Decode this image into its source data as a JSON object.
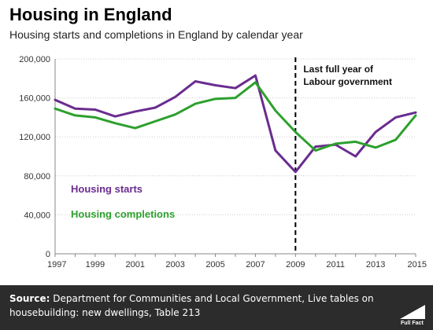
{
  "header": {
    "title": "Housing in England",
    "subtitle": "Housing starts and completions in England by calendar year"
  },
  "chart_data": {
    "type": "line",
    "title": "Housing in England",
    "subtitle": "Housing starts and completions in England by calendar year",
    "xlabel": "",
    "ylabel": "",
    "x": [
      1997,
      1998,
      1999,
      2000,
      2001,
      2002,
      2003,
      2004,
      2005,
      2006,
      2007,
      2008,
      2009,
      2010,
      2011,
      2012,
      2013,
      2014,
      2015
    ],
    "xticks": [
      "1997",
      "1999",
      "2001",
      "2003",
      "2005",
      "2007",
      "2009",
      "2011",
      "2013",
      "2015"
    ],
    "yticks": [
      "0",
      "40,000",
      "80,000",
      "120,000",
      "160,000",
      "200,000"
    ],
    "ylim": [
      0,
      200000
    ],
    "xlim": [
      1997,
      2015
    ],
    "grid": "horizontal",
    "legend_position": "inside-left",
    "series": [
      {
        "name": "Housing starts",
        "color": "#6a2c8f",
        "values": [
          158000,
          149000,
          148000,
          141000,
          146000,
          150000,
          161000,
          177000,
          173000,
          170000,
          183000,
          106000,
          84000,
          110000,
          112000,
          100000,
          125000,
          140000,
          145000
        ]
      },
      {
        "name": "Housing completions",
        "color": "#2ca02c",
        "values": [
          149000,
          142000,
          140000,
          134000,
          129000,
          136000,
          143000,
          154000,
          159000,
          160000,
          176000,
          147000,
          125000,
          106000,
          113000,
          115000,
          109000,
          117000,
          142000
        ]
      }
    ],
    "annotations": [
      {
        "x": 2009,
        "label_line1": "Last full year of",
        "label_line2": "Labour government"
      }
    ]
  },
  "footer": {
    "source_label": "Source:",
    "source_text": "Department for Communities and Local Government, Live tables on housebuilding: new dwellings, Table 213",
    "logo_text": "Full Fact"
  }
}
